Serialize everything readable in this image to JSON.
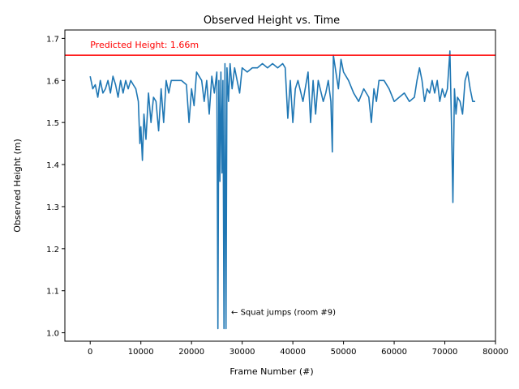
{
  "chart_data": {
    "type": "line",
    "title": "Observed Height vs. Time",
    "xlabel": "Frame Number (#)",
    "ylabel": "Observed Height (m)",
    "xlim": [
      -5000,
      80000
    ],
    "ylim": [
      0.98,
      1.72
    ],
    "xticks": [
      0,
      10000,
      20000,
      30000,
      40000,
      50000,
      60000,
      70000,
      80000
    ],
    "yticks": [
      1.0,
      1.1,
      1.2,
      1.3,
      1.4,
      1.5,
      1.6,
      1.7
    ],
    "xtick_labels": [
      "0",
      "10000",
      "20000",
      "30000",
      "40000",
      "50000",
      "60000",
      "70000",
      "80000"
    ],
    "ytick_labels": [
      "1.0",
      "1.1",
      "1.2",
      "1.3",
      "1.4",
      "1.5",
      "1.6",
      "1.7"
    ],
    "grid": false,
    "series_color": "#1f77b4",
    "reference_line": {
      "y": 1.66,
      "label": "Predicted Height: 1.66m",
      "color": "#ff0000"
    },
    "annotations": [
      {
        "text": "← Squat jumps (room #9)",
        "x": 27500,
        "y": 1.05
      }
    ],
    "series": [
      {
        "x": [
          0,
          500,
          1000,
          1500,
          2000,
          2500,
          3000,
          3500,
          4000,
          4500,
          5000,
          5500,
          6000,
          6500,
          7000,
          7500,
          8000,
          8500,
          9000,
          9500,
          9800,
          10000,
          10300,
          10600,
          11000,
          11500,
          12000,
          12500,
          13000,
          13500,
          14000,
          14500,
          15000,
          15500,
          16000,
          17000,
          18000,
          19000,
          19500,
          20000,
          20500,
          21000,
          22000,
          22500,
          23000,
          23500,
          24000,
          24500,
          25000,
          25200,
          25400,
          25600,
          25800,
          26000,
          26200,
          26400,
          26600,
          26800,
          27000,
          27300,
          27600,
          28000,
          28500,
          29000,
          29500,
          30000,
          31000,
          32000,
          33000,
          34000,
          35000,
          36000,
          37000,
          38000,
          38500,
          39000,
          39500,
          40000,
          40500,
          41000,
          42000,
          43000,
          43500,
          44000,
          44500,
          45000,
          46000,
          46500,
          47000,
          47500,
          47800,
          48000,
          48500,
          49000,
          49500,
          50000,
          51000,
          52000,
          53000,
          54000,
          55000,
          55500,
          56000,
          56500,
          57000,
          58000,
          59000,
          60000,
          61000,
          62000,
          63000,
          64000,
          64500,
          65000,
          65500,
          66000,
          66500,
          67000,
          67500,
          68000,
          68500,
          69000,
          69500,
          70000,
          70500,
          71000,
          71300,
          71600,
          71900,
          72200,
          72500,
          73000,
          73500,
          74000,
          74500,
          75000,
          75500,
          76000
        ],
        "y": [
          1.61,
          1.58,
          1.59,
          1.56,
          1.6,
          1.57,
          1.58,
          1.6,
          1.57,
          1.61,
          1.59,
          1.56,
          1.6,
          1.57,
          1.6,
          1.58,
          1.6,
          1.59,
          1.58,
          1.55,
          1.45,
          1.49,
          1.41,
          1.52,
          1.46,
          1.57,
          1.5,
          1.56,
          1.55,
          1.48,
          1.58,
          1.5,
          1.6,
          1.57,
          1.6,
          1.6,
          1.6,
          1.59,
          1.5,
          1.58,
          1.54,
          1.62,
          1.6,
          1.55,
          1.6,
          1.52,
          1.61,
          1.57,
          1.62,
          1.01,
          1.6,
          1.36,
          1.62,
          1.38,
          1.6,
          1.01,
          1.64,
          1.01,
          1.63,
          1.55,
          1.64,
          1.58,
          1.63,
          1.6,
          1.57,
          1.63,
          1.62,
          1.63,
          1.63,
          1.64,
          1.63,
          1.64,
          1.63,
          1.64,
          1.63,
          1.51,
          1.6,
          1.5,
          1.58,
          1.6,
          1.55,
          1.62,
          1.5,
          1.6,
          1.52,
          1.6,
          1.55,
          1.57,
          1.6,
          1.55,
          1.43,
          1.66,
          1.62,
          1.58,
          1.65,
          1.62,
          1.6,
          1.57,
          1.55,
          1.58,
          1.56,
          1.5,
          1.58,
          1.55,
          1.6,
          1.6,
          1.58,
          1.55,
          1.56,
          1.57,
          1.55,
          1.56,
          1.6,
          1.63,
          1.6,
          1.55,
          1.58,
          1.57,
          1.6,
          1.57,
          1.6,
          1.55,
          1.58,
          1.56,
          1.58,
          1.67,
          1.5,
          1.31,
          1.58,
          1.52,
          1.56,
          1.55,
          1.52,
          1.6,
          1.62,
          1.58,
          1.55,
          1.55
        ]
      }
    ]
  }
}
